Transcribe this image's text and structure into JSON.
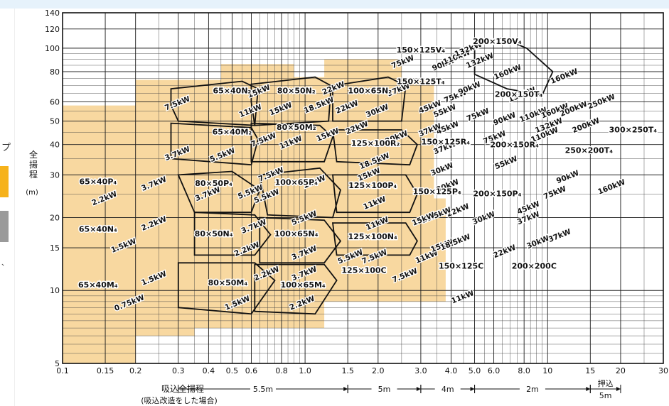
{
  "sidebar": {
    "char_top": "プ",
    "char_bottom": "、",
    "tab_active_color": "#f6b21b",
    "tab_inactive_color": "#9a9a9a"
  },
  "chart_data": {
    "type": "area",
    "title": "",
    "xlabel": "吸込全揚程",
    "xlabel_note": "(吸込改造をした場合)",
    "ylabel": "全揚程",
    "ylabel_unit": "(m)",
    "x_scale": "log",
    "y_scale": "log",
    "xlim": [
      0.1,
      30
    ],
    "ylim": [
      5,
      140
    ],
    "x_ticks": [
      0.1,
      0.15,
      0.2,
      0.3,
      0.4,
      0.5,
      0.6,
      0.8,
      1.0,
      1.5,
      2.0,
      3.0,
      4.0,
      5.0,
      6.0,
      8.0,
      10,
      15,
      20,
      30
    ],
    "x_tick_labels": [
      "0.1",
      "0.15",
      "0.2",
      "0.3",
      "0.4",
      "0.5",
      "0.6",
      "0.8",
      "1.0",
      "1.5",
      "2.0",
      "3.0",
      "4.0",
      "5.0",
      "6.0",
      "8.0",
      "10",
      "15",
      "20",
      "30"
    ],
    "y_ticks": [
      5,
      10,
      15,
      20,
      30,
      40,
      50,
      60,
      80,
      100,
      120,
      140
    ],
    "y_tick_labels": [
      "5",
      "10",
      "15",
      "20",
      "30",
      "40",
      "50",
      "60",
      "80",
      "100",
      "120",
      "140"
    ],
    "grid": true,
    "shaded_color": "#f8d8a0",
    "shaded_region": [
      [
        0.1,
        5
      ],
      [
        0.1,
        58
      ],
      [
        0.2,
        58
      ],
      [
        0.2,
        74
      ],
      [
        0.45,
        74
      ],
      [
        0.45,
        86
      ],
      [
        0.9,
        86
      ],
      [
        0.9,
        76
      ],
      [
        1.2,
        76
      ],
      [
        1.2,
        90
      ],
      [
        2.5,
        90
      ],
      [
        2.5,
        74
      ],
      [
        3.4,
        74
      ],
      [
        3.4,
        24
      ],
      [
        3.8,
        24
      ],
      [
        3.8,
        9
      ],
      [
        1.2,
        9
      ],
      [
        1.2,
        7
      ],
      [
        0.35,
        7
      ],
      [
        0.35,
        6.5
      ],
      [
        0.2,
        6.5
      ],
      [
        0.2,
        5
      ]
    ],
    "suction_ranges": [
      {
        "label": "5.5m",
        "from": 0.3,
        "to": 1.5
      },
      {
        "label": "5m",
        "from": 1.5,
        "to": 3.0
      },
      {
        "label": "4m",
        "from": 3.0,
        "to": 5.0
      },
      {
        "label": "2m",
        "from": 5.0,
        "to": 15
      },
      {
        "label": "押込",
        "sublabel": "5m",
        "from": 15,
        "to": 20
      }
    ],
    "models": [
      {
        "name": "65×40N₂",
        "x": 0.5,
        "y": 65,
        "pts": [
          [
            0.28,
            68
          ],
          [
            0.55,
            73
          ],
          [
            0.64,
            68
          ],
          [
            0.62,
            48
          ],
          [
            0.3,
            50
          ],
          [
            0.28,
            58
          ]
        ]
      },
      {
        "name": "65×40M₂",
        "x": 0.5,
        "y": 44,
        "pts": [
          [
            0.28,
            49
          ],
          [
            0.6,
            47
          ],
          [
            0.64,
            42
          ],
          [
            0.6,
            33
          ],
          [
            0.28,
            35
          ]
        ]
      },
      {
        "name": "65×40P₄",
        "x": 0.14,
        "y": 27.5
      },
      {
        "name": "65×40N₄",
        "x": 0.14,
        "y": 17.5
      },
      {
        "name": "65×40M₄",
        "x": 0.14,
        "y": 10.3
      },
      {
        "name": "80×50N₂",
        "x": 0.92,
        "y": 65,
        "pts": [
          [
            0.6,
            71
          ],
          [
            1.1,
            76
          ],
          [
            1.28,
            70
          ],
          [
            1.25,
            50
          ],
          [
            0.62,
            48
          ],
          [
            0.6,
            60
          ]
        ]
      },
      {
        "name": "80×50M₂",
        "x": 0.92,
        "y": 46,
        "pts": [
          [
            0.6,
            49
          ],
          [
            1.15,
            48
          ],
          [
            1.3,
            43
          ],
          [
            1.2,
            34
          ],
          [
            0.6,
            34
          ]
        ]
      },
      {
        "name": "80×50P₄",
        "x": 0.42,
        "y": 27,
        "pts": [
          [
            0.3,
            30
          ],
          [
            0.5,
            31
          ],
          [
            0.65,
            26
          ],
          [
            0.6,
            21
          ],
          [
            0.35,
            21
          ]
        ]
      },
      {
        "name": "80×50N₄",
        "x": 0.42,
        "y": 16.7,
        "pts": [
          [
            0.35,
            21
          ],
          [
            0.62,
            20.5
          ],
          [
            0.72,
            17
          ],
          [
            0.62,
            14
          ],
          [
            0.35,
            14
          ]
        ]
      },
      {
        "name": "80×50M₄",
        "x": 0.48,
        "y": 10.5,
        "pts": [
          [
            0.3,
            13
          ],
          [
            0.62,
            13
          ],
          [
            0.75,
            11
          ],
          [
            0.6,
            8
          ],
          [
            0.3,
            8.5
          ]
        ]
      },
      {
        "name": "100×65N₂",
        "x": 1.85,
        "y": 65,
        "pts": [
          [
            1.3,
            70
          ],
          [
            2.2,
            76
          ],
          [
            2.6,
            70
          ],
          [
            2.5,
            50
          ],
          [
            1.3,
            50
          ]
        ]
      },
      {
        "name": "100×65P₄",
        "x": 0.92,
        "y": 27.3,
        "pts": [
          [
            0.65,
            30
          ],
          [
            1.15,
            32
          ],
          [
            1.4,
            26
          ],
          [
            1.3,
            20
          ],
          [
            0.7,
            20.5
          ]
        ]
      },
      {
        "name": "100×65N₄",
        "x": 0.92,
        "y": 16.7,
        "pts": [
          [
            0.65,
            20
          ],
          [
            1.2,
            19.5
          ],
          [
            1.4,
            16
          ],
          [
            1.2,
            13
          ],
          [
            0.65,
            13
          ]
        ]
      },
      {
        "name": "100×65M₄",
        "x": 0.98,
        "y": 10.3,
        "pts": [
          [
            0.62,
            12.8
          ],
          [
            1.2,
            12.8
          ],
          [
            1.35,
            11
          ],
          [
            1.1,
            8
          ],
          [
            0.62,
            8.2
          ]
        ]
      },
      {
        "name": "125×100R₂",
        "x": 1.95,
        "y": 39.5,
        "pts": [
          [
            1.3,
            46
          ],
          [
            2.5,
            46
          ],
          [
            2.9,
            40
          ],
          [
            2.7,
            33
          ],
          [
            1.35,
            34
          ]
        ]
      },
      {
        "name": "125×100P₄",
        "x": 1.9,
        "y": 26.5,
        "pts": [
          [
            1.3,
            30
          ],
          [
            2.6,
            30
          ],
          [
            2.9,
            25
          ],
          [
            2.7,
            21
          ],
          [
            1.35,
            21
          ]
        ]
      },
      {
        "name": "125×100N₄",
        "x": 1.9,
        "y": 16.3,
        "pts": [
          [
            1.3,
            19
          ],
          [
            2.6,
            19
          ],
          [
            2.9,
            16
          ],
          [
            2.7,
            14
          ],
          [
            1.35,
            14
          ]
        ]
      },
      {
        "name": "125×100C",
        "x": 1.75,
        "y": 11.8
      },
      {
        "name": "150×125V₄",
        "x": 3.0,
        "y": 96
      },
      {
        "name": "150×125T₄",
        "x": 3.0,
        "y": 71
      },
      {
        "name": "150×125R₄",
        "x": 3.8,
        "y": 40
      },
      {
        "name": "150×125P₄",
        "x": 3.5,
        "y": 25
      },
      {
        "name": "150×125C",
        "x": 4.4,
        "y": 12.3
      },
      {
        "name": "200×150V₄",
        "x": 6.2,
        "y": 104,
        "pts": [
          [
            5.0,
            104
          ],
          [
            6.5,
            110
          ],
          [
            8.2,
            100
          ],
          [
            10.5,
            80
          ],
          [
            9.5,
            64
          ],
          [
            6.8,
            68
          ],
          [
            5.0,
            78
          ]
        ]
      },
      {
        "name": "200×150T₄",
        "x": 7.6,
        "y": 63
      },
      {
        "name": "200×150R₄",
        "x": 7.3,
        "y": 39
      },
      {
        "name": "200×150P₄",
        "x": 6.2,
        "y": 24.5
      },
      {
        "name": "200×200C",
        "x": 8.8,
        "y": 12.3
      },
      {
        "name": "250×200T₄",
        "x": 14.8,
        "y": 37
      },
      {
        "name": "300×250T₄",
        "x": 22.5,
        "y": 45
      }
    ],
    "power_labels": [
      {
        "text": "15kW",
        "x": 0.65,
        "y": 65
      },
      {
        "text": "7.5kW",
        "x": 0.3,
        "y": 58
      },
      {
        "text": "11kW",
        "x": 0.6,
        "y": 54
      },
      {
        "text": "7.5kW",
        "x": 0.68,
        "y": 41
      },
      {
        "text": "3.7kW",
        "x": 0.3,
        "y": 36
      },
      {
        "text": "5.5kW",
        "x": 0.46,
        "y": 35.5
      },
      {
        "text": "3.7kW",
        "x": 0.24,
        "y": 27
      },
      {
        "text": "2.2kW",
        "x": 0.15,
        "y": 23.5
      },
      {
        "text": "2.2kW",
        "x": 0.24,
        "y": 18.5
      },
      {
        "text": "1.5kW",
        "x": 0.18,
        "y": 15
      },
      {
        "text": "1.5kW",
        "x": 0.24,
        "y": 11
      },
      {
        "text": "0.75kW",
        "x": 0.19,
        "y": 8.7
      },
      {
        "text": "3.7kW",
        "x": 0.4,
        "y": 24.5
      },
      {
        "text": "5.5kW",
        "x": 0.6,
        "y": 25
      },
      {
        "text": "3.7kW",
        "x": 0.62,
        "y": 18
      },
      {
        "text": "2.2kW",
        "x": 0.58,
        "y": 14.5
      },
      {
        "text": "2.2kW",
        "x": 0.7,
        "y": 11.5
      },
      {
        "text": "1.5kW",
        "x": 0.53,
        "y": 8.7
      },
      {
        "text": "15kW",
        "x": 0.8,
        "y": 55
      },
      {
        "text": "18.5kW",
        "x": 1.15,
        "y": 57
      },
      {
        "text": "22kW",
        "x": 1.32,
        "y": 67
      },
      {
        "text": "11kW",
        "x": 0.88,
        "y": 40
      },
      {
        "text": "15kW",
        "x": 1.25,
        "y": 43
      },
      {
        "text": "7.5kW",
        "x": 0.73,
        "y": 29.5
      },
      {
        "text": "5.5kW",
        "x": 0.7,
        "y": 24
      },
      {
        "text": "11kW",
        "x": 1.1,
        "y": 27.5
      },
      {
        "text": "5.5kW",
        "x": 1.0,
        "y": 19.5
      },
      {
        "text": "3.7kW",
        "x": 1.0,
        "y": 14
      },
      {
        "text": "3.7kW",
        "x": 1.0,
        "y": 11.5
      },
      {
        "text": "2.2kW",
        "x": 0.98,
        "y": 8.7
      },
      {
        "text": "37kW",
        "x": 2.45,
        "y": 66
      },
      {
        "text": "22kW",
        "x": 1.5,
        "y": 56
      },
      {
        "text": "30kW",
        "x": 2.0,
        "y": 54
      },
      {
        "text": "22kW",
        "x": 1.65,
        "y": 46
      },
      {
        "text": "30kW",
        "x": 2.4,
        "y": 42
      },
      {
        "text": "18.5kW",
        "x": 1.95,
        "y": 33.5
      },
      {
        "text": "15kW",
        "x": 1.85,
        "y": 29.5
      },
      {
        "text": "11kW",
        "x": 1.95,
        "y": 22.5
      },
      {
        "text": "11kW",
        "x": 2.0,
        "y": 18.5
      },
      {
        "text": "7.5kW",
        "x": 1.95,
        "y": 13.5
      },
      {
        "text": "5.5kW",
        "x": 1.55,
        "y": 13.5
      },
      {
        "text": "7.5kW",
        "x": 2.6,
        "y": 11.3
      },
      {
        "text": "11kW",
        "x": 3.2,
        "y": 13.5
      },
      {
        "text": "75kW",
        "x": 2.55,
        "y": 86
      },
      {
        "text": "90kW",
        "x": 3.75,
        "y": 84
      },
      {
        "text": "110kW",
        "x": 4.25,
        "y": 90
      },
      {
        "text": "132kW",
        "x": 4.75,
        "y": 97
      },
      {
        "text": "132kW",
        "x": 5.3,
        "y": 87
      },
      {
        "text": "160kW",
        "x": 6.9,
        "y": 78
      },
      {
        "text": "160kW",
        "x": 11.8,
        "y": 75
      },
      {
        "text": "45kW",
        "x": 3.3,
        "y": 56
      },
      {
        "text": "55kW",
        "x": 3.8,
        "y": 54
      },
      {
        "text": "75kW",
        "x": 4.2,
        "y": 62
      },
      {
        "text": "45kW",
        "x": 3.9,
        "y": 46
      },
      {
        "text": "37kW",
        "x": 3.3,
        "y": 45
      },
      {
        "text": "90kW",
        "x": 4.8,
        "y": 67
      },
      {
        "text": "132kW",
        "x": 7.9,
        "y": 63
      },
      {
        "text": "75kW",
        "x": 5.2,
        "y": 52
      },
      {
        "text": "90kW",
        "x": 6.7,
        "y": 50
      },
      {
        "text": "110kW",
        "x": 8.8,
        "y": 52
      },
      {
        "text": "132kW",
        "x": 10.2,
        "y": 47
      },
      {
        "text": "110kW",
        "x": 9.8,
        "y": 43
      },
      {
        "text": "160kW",
        "x": 10.8,
        "y": 54
      },
      {
        "text": "200kW",
        "x": 12.9,
        "y": 55
      },
      {
        "text": "250kW",
        "x": 16.8,
        "y": 59
      },
      {
        "text": "200kW",
        "x": 14.5,
        "y": 47
      },
      {
        "text": "75kW",
        "x": 6.1,
        "y": 42
      },
      {
        "text": "55kW",
        "x": 6.8,
        "y": 33
      },
      {
        "text": "90kW",
        "x": 12.2,
        "y": 28.8
      },
      {
        "text": "75kW",
        "x": 10.8,
        "y": 24.8
      },
      {
        "text": "160kW",
        "x": 18.5,
        "y": 26.2
      },
      {
        "text": "37kW",
        "x": 3.8,
        "y": 38
      },
      {
        "text": "30kW",
        "x": 3.7,
        "y": 31
      },
      {
        "text": "30kW",
        "x": 3.9,
        "y": 26.5
      },
      {
        "text": "22kW",
        "x": 4.3,
        "y": 21
      },
      {
        "text": "18.5kW",
        "x": 3.5,
        "y": 20
      },
      {
        "text": "15kW",
        "x": 3.1,
        "y": 19.3
      },
      {
        "text": "15kW",
        "x": 3.7,
        "y": 15
      },
      {
        "text": "18.5kW",
        "x": 4.2,
        "y": 15.5
      },
      {
        "text": "30kW",
        "x": 5.5,
        "y": 19.5
      },
      {
        "text": "45kW",
        "x": 8.4,
        "y": 21.5
      },
      {
        "text": "37kW",
        "x": 8.4,
        "y": 19.5
      },
      {
        "text": "37kW",
        "x": 11.3,
        "y": 16.5
      },
      {
        "text": "30kW",
        "x": 9.2,
        "y": 15.5
      },
      {
        "text": "22kW",
        "x": 6.7,
        "y": 14.2
      },
      {
        "text": "11kW",
        "x": 4.5,
        "y": 9.2
      }
    ]
  }
}
